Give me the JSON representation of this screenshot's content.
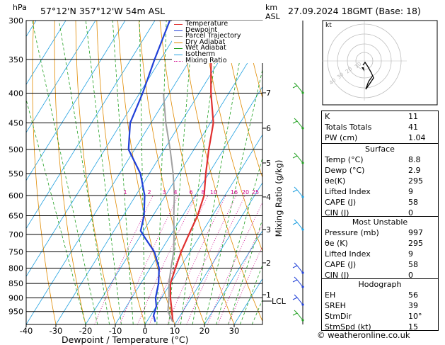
{
  "header": {
    "hpa_label": "hPa",
    "location": "57°12'N  357°12'W  54m  ASL",
    "km_label": "km",
    "asl_label": "ASL",
    "datetime": "27.09.2024  18GMT  (Base: 18)"
  },
  "chart_data": {
    "type": "line",
    "xlabel": "Dewpoint / Temperature (°C)",
    "ylabel_right": "Mixing Ratio (g/kg)",
    "x_ticks": [
      "-40",
      "-30",
      "-20",
      "-10",
      "0",
      "10",
      "20",
      "30"
    ],
    "pressure_ticks": [
      "300",
      "350",
      "400",
      "450",
      "500",
      "550",
      "600",
      "650",
      "700",
      "750",
      "800",
      "850",
      "900",
      "950"
    ],
    "km_ticks": [
      "1",
      "2",
      "3",
      "4",
      "5",
      "6",
      "7"
    ],
    "lcl_label": "LCL",
    "mixing_ratio_labels": [
      "1",
      "2",
      "3",
      "4",
      "6",
      "8",
      "10",
      "16",
      "20",
      "25"
    ],
    "legend": [
      "Temperature",
      "Dewpoint",
      "Parcel Trajectory",
      "Dry Adiabat",
      "Wet Adiabat",
      "Isotherm",
      "Mixing Ratio"
    ],
    "series": [
      {
        "name": "Temperature",
        "color": "#e03030",
        "points": [
          [
            8.8,
            990
          ],
          [
            7,
            960
          ],
          [
            3,
            900
          ],
          [
            0,
            850
          ],
          [
            -1.5,
            800
          ],
          [
            -3,
            750
          ],
          [
            -4,
            700
          ],
          [
            -5,
            650
          ],
          [
            -7,
            600
          ],
          [
            -11,
            550
          ],
          [
            -15,
            500
          ],
          [
            -19,
            450
          ],
          [
            -26,
            400
          ],
          [
            -33,
            350
          ],
          [
            -39,
            300
          ]
        ]
      },
      {
        "name": "Dewpoint",
        "color": "#2040d8",
        "points": [
          [
            2.9,
            990
          ],
          [
            1,
            965
          ],
          [
            0,
            930
          ],
          [
            -2,
            900
          ],
          [
            -4,
            850
          ],
          [
            -7,
            800
          ],
          [
            -12,
            750
          ],
          [
            -18,
            710
          ],
          [
            -21,
            690
          ],
          [
            -23,
            650
          ],
          [
            -27,
            600
          ],
          [
            -33,
            550
          ],
          [
            -42,
            500
          ],
          [
            -47,
            450
          ],
          [
            -49,
            400
          ],
          [
            -52,
            350
          ],
          [
            -55,
            300
          ]
        ]
      },
      {
        "name": "Parcel Trajectory",
        "color": "#a0a0a0",
        "points": [
          [
            8.8,
            990
          ],
          [
            5,
            950
          ],
          [
            2.5,
            900
          ],
          [
            -0.5,
            850
          ],
          [
            -3,
            800
          ],
          [
            -5.5,
            750
          ],
          [
            -9,
            700
          ],
          [
            -13,
            650
          ],
          [
            -17,
            600
          ],
          [
            -22,
            550
          ],
          [
            -28,
            500
          ],
          [
            -35,
            450
          ],
          [
            -42,
            400
          ]
        ]
      }
    ],
    "colors": {
      "dry_adiabat": "#e08a00",
      "wet_adiabat": "#20a020",
      "isotherm": "#20a0e0",
      "mixing_ratio": "#d0008a"
    }
  },
  "hodograph": {
    "label": "kt",
    "ring_labels": [
      "10",
      "20",
      "30",
      "40"
    ]
  },
  "indices": [
    {
      "k": "K",
      "v": "11"
    },
    {
      "k": "Totals Totals",
      "v": "41"
    },
    {
      "k": "PW (cm)",
      "v": "1.04"
    }
  ],
  "surface": {
    "title": "Surface",
    "rows": [
      {
        "k": "Temp (°C)",
        "v": "8.8"
      },
      {
        "k": "Dewp (°C)",
        "v": "2.9"
      },
      {
        "k": "θe(K)",
        "v": "295"
      },
      {
        "k": "Lifted Index",
        "v": "9"
      },
      {
        "k": "CAPE (J)",
        "v": "58"
      },
      {
        "k": "CIN (J)",
        "v": "0"
      }
    ]
  },
  "most_unstable": {
    "title": "Most Unstable",
    "rows": [
      {
        "k": "Pressure (mb)",
        "v": "997"
      },
      {
        "k": "θe (K)",
        "v": "295"
      },
      {
        "k": "Lifted Index",
        "v": "9"
      },
      {
        "k": "CAPE (J)",
        "v": "58"
      },
      {
        "k": "CIN (J)",
        "v": "0"
      }
    ]
  },
  "hodograph_table": {
    "title": "Hodograph",
    "rows": [
      {
        "k": "EH",
        "v": "56"
      },
      {
        "k": "SREH",
        "v": "39"
      },
      {
        "k": "StmDir",
        "v": "10°"
      },
      {
        "k": "StmSpd (kt)",
        "v": "15"
      }
    ]
  },
  "footer": "© weatheronline.co.uk"
}
